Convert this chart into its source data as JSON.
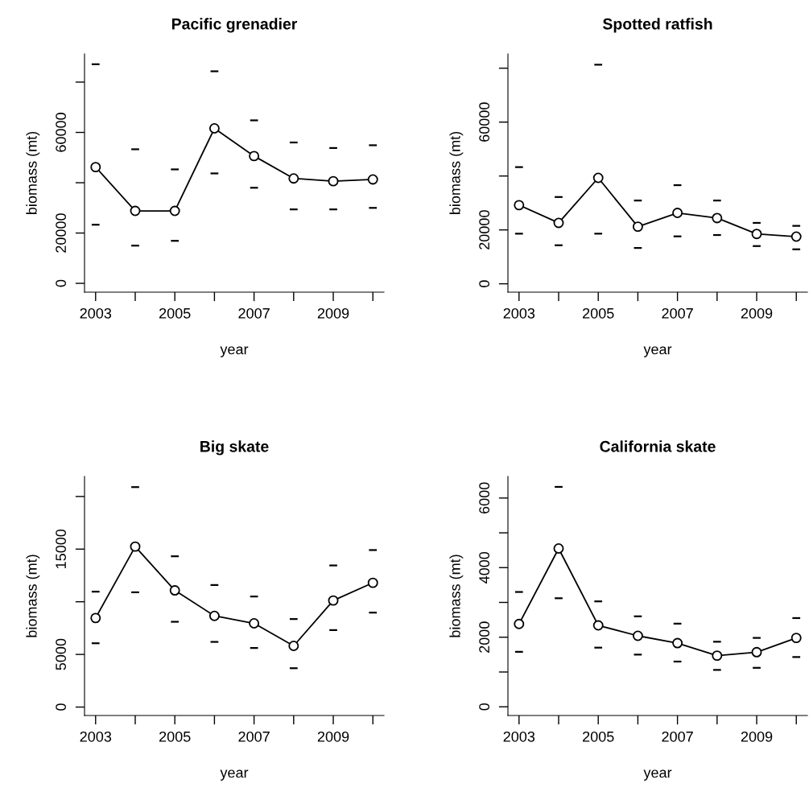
{
  "chart_data": [
    {
      "type": "line",
      "title": "Pacific grenadier",
      "xlabel": "year",
      "ylabel": "biomass (mt)",
      "x": [
        2003,
        2004,
        2005,
        2006,
        2007,
        2008,
        2009,
        2010
      ],
      "series": [
        {
          "color": "#000000",
          "values": [
            46200,
            28800,
            28800,
            61600,
            50600,
            41700,
            40600,
            41300
          ],
          "errors": [
            [
              23300,
              87100
            ],
            [
              15000,
              53300
            ],
            [
              16900,
              45300
            ],
            [
              43700,
              84300
            ],
            [
              38000,
              64800
            ],
            [
              29400,
              56000
            ],
            [
              29400,
              53800
            ],
            [
              30000,
              54900
            ]
          ]
        }
      ],
      "xlim": [
        2002.72,
        2010.28
      ],
      "xticks": [
        2003,
        {
          "value": 2004,
          "label": null
        },
        2005,
        {
          "value": 2006,
          "label": null
        },
        2007,
        {
          "value": 2008,
          "label": null
        },
        2009,
        {
          "value": 2010,
          "label": null
        }
      ],
      "ylim": [
        -3500,
        91200
      ],
      "yticks": [
        0,
        20000,
        {
          "value": 40000,
          "label": null
        },
        60000,
        {
          "value": 80000,
          "label": null
        }
      ],
      "marker": "circle",
      "line_style": "solid"
    },
    {
      "type": "line",
      "title": "Spotted ratfish",
      "xlabel": "year",
      "ylabel": "biomass (mt)",
      "x": [
        2003,
        2004,
        2005,
        2006,
        2007,
        2008,
        2009,
        2010
      ],
      "series": [
        {
          "color": "#000000",
          "values": [
            29200,
            22600,
            39300,
            21200,
            26300,
            24400,
            18500,
            17500
          ],
          "errors": [
            [
              18600,
              43300
            ],
            [
              14300,
              32200
            ],
            [
              18600,
              81300
            ],
            [
              13300,
              30900
            ],
            [
              17600,
              36600
            ],
            [
              18100,
              30900
            ],
            [
              14000,
              22600
            ],
            [
              12800,
              21500
            ]
          ]
        }
      ],
      "xlim": [
        2002.72,
        2010.28
      ],
      "xticks": [
        2003,
        {
          "value": 2004,
          "label": null
        },
        2005,
        {
          "value": 2006,
          "label": null
        },
        2007,
        {
          "value": 2008,
          "label": null
        },
        2009,
        {
          "value": 2010,
          "label": null
        }
      ],
      "ylim": [
        -3100,
        85300
      ],
      "yticks": [
        0,
        20000,
        {
          "value": 40000,
          "label": null
        },
        60000,
        {
          "value": 80000,
          "label": null
        }
      ],
      "marker": "circle",
      "line_style": "solid"
    },
    {
      "type": "line",
      "title": "Big skate",
      "xlabel": "year",
      "ylabel": "biomass (mt)",
      "x": [
        2003,
        2004,
        2005,
        2006,
        2007,
        2008,
        2009,
        2010
      ],
      "series": [
        {
          "color": "#000000",
          "values": [
            8460,
            15240,
            11080,
            8660,
            7950,
            5810,
            10120,
            11800
          ],
          "errors": [
            [
              6060,
              10960
            ],
            [
              10900,
              20890
            ],
            [
              8100,
              14320
            ],
            [
              6190,
              11590
            ],
            [
              5610,
              10500
            ],
            [
              3690,
              8360
            ],
            [
              7310,
              13450
            ],
            [
              8970,
              14910
            ]
          ]
        }
      ],
      "xlim": [
        2002.72,
        2010.28
      ],
      "xticks": [
        2003,
        {
          "value": 2004,
          "label": null
        },
        2005,
        {
          "value": 2006,
          "label": null
        },
        2007,
        {
          "value": 2008,
          "label": null
        },
        2009,
        {
          "value": 2010,
          "label": null
        }
      ],
      "ylim": [
        -800,
        21900
      ],
      "yticks": [
        0,
        5000,
        {
          "value": 10000,
          "label": null
        },
        15000,
        {
          "value": 20000,
          "label": null
        }
      ],
      "marker": "circle",
      "line_style": "solid"
    },
    {
      "type": "line",
      "title": "California skate",
      "xlabel": "year",
      "ylabel": "biomass (mt)",
      "x": [
        2003,
        2004,
        2005,
        2006,
        2007,
        2008,
        2009,
        2010
      ],
      "series": [
        {
          "color": "#000000",
          "values": [
            2380,
            4550,
            2340,
            2040,
            1830,
            1470,
            1570,
            1980
          ],
          "errors": [
            [
              1580,
              3300
            ],
            [
              3120,
              6320
            ],
            [
              1700,
              3030
            ],
            [
              1500,
              2600
            ],
            [
              1300,
              2390
            ],
            [
              1060,
              1870
            ],
            [
              1120,
              1980
            ],
            [
              1430,
              2550
            ]
          ]
        }
      ],
      "xlim": [
        2002.72,
        2010.28
      ],
      "xticks": [
        2003,
        {
          "value": 2004,
          "label": null
        },
        2005,
        {
          "value": 2006,
          "label": null
        },
        2007,
        {
          "value": 2008,
          "label": null
        },
        2009,
        {
          "value": 2010,
          "label": null
        }
      ],
      "ylim": [
        -250,
        6620
      ],
      "yticks": [
        0,
        {
          "value": 1000,
          "label": null
        },
        2000,
        {
          "value": 3000,
          "label": null
        },
        4000,
        {
          "value": 5000,
          "label": null
        },
        6000
      ],
      "marker": "circle",
      "line_style": "solid"
    }
  ]
}
